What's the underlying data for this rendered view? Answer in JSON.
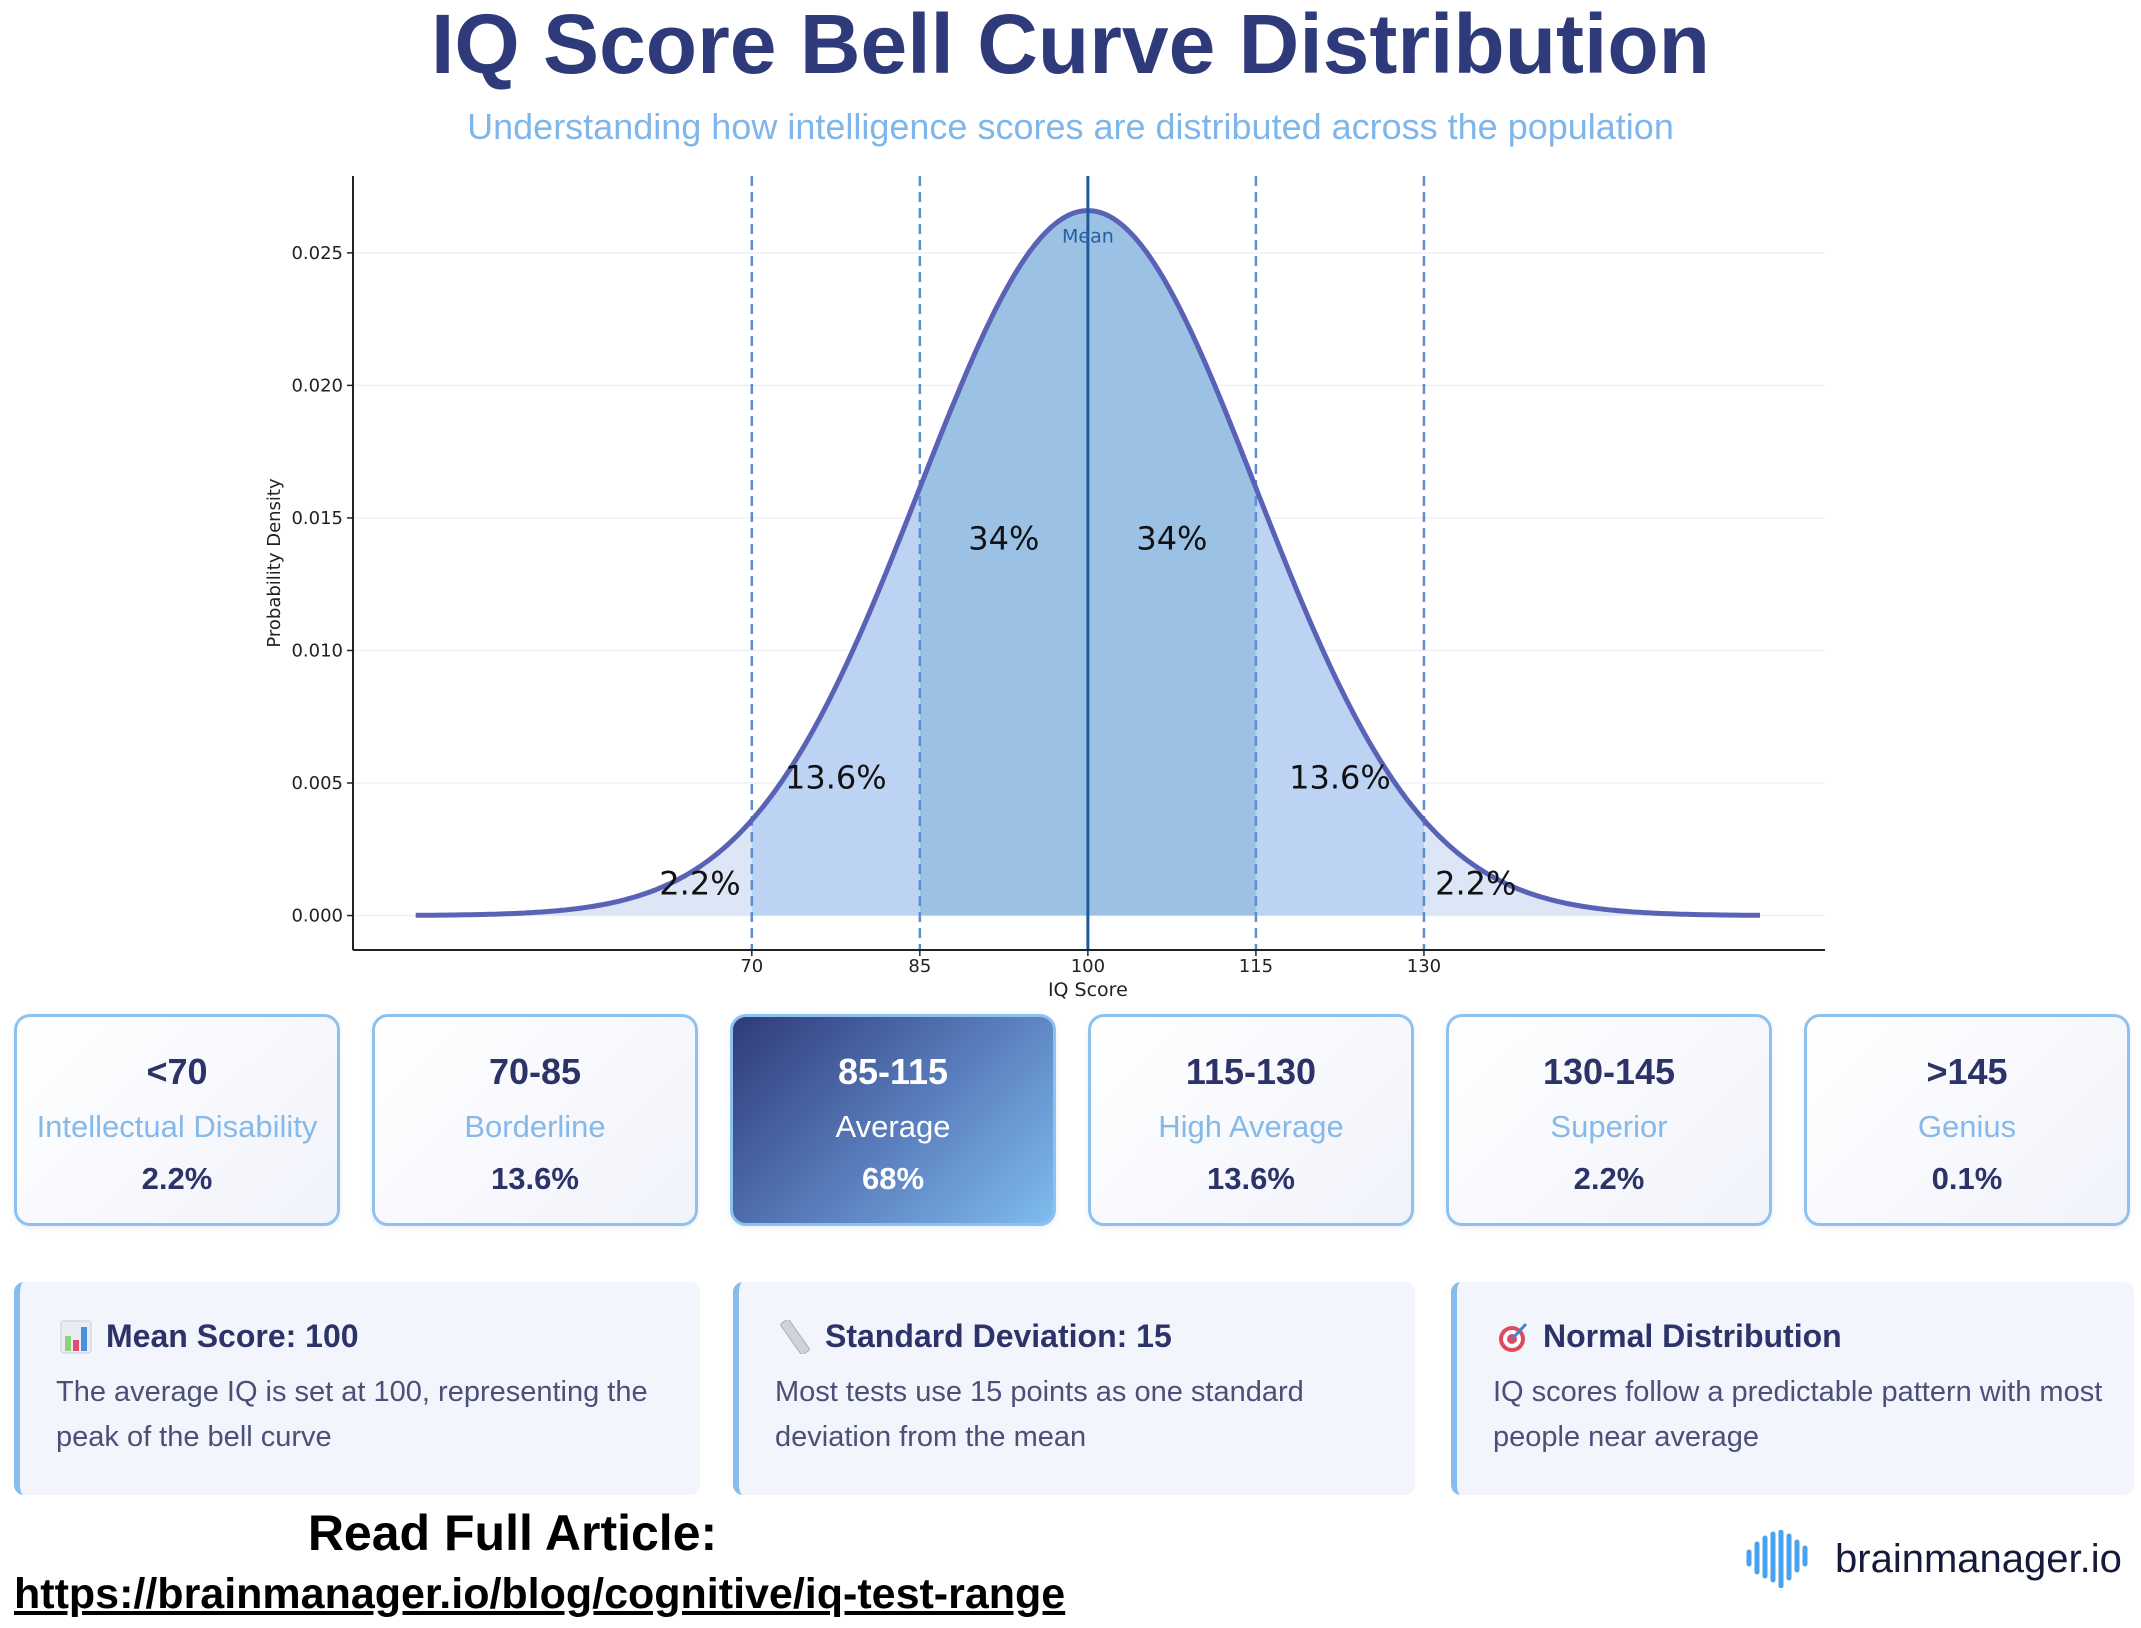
{
  "header": {
    "title": "IQ Score Bell Curve Distribution",
    "subtitle": "Understanding how intelligence scores are distributed across the population"
  },
  "chart_data": {
    "type": "area",
    "title": "",
    "xlabel": "IQ Score",
    "ylabel": "Probability Density",
    "distribution": {
      "mean": 100,
      "sd": 15
    },
    "x_range": [
      40,
      160
    ],
    "xlim": [
      34.4,
      165.8
    ],
    "ylim": [
      -0.0013,
      0.0279
    ],
    "xticks": [
      70,
      85,
      100,
      115,
      130
    ],
    "xtick_labels": [
      "70",
      "85",
      "100",
      "115",
      "130"
    ],
    "yticks": [
      0.0,
      0.005,
      0.01,
      0.015,
      0.02,
      0.025
    ],
    "ytick_labels": [
      "0.000",
      "0.005",
      "0.010",
      "0.015",
      "0.020",
      "0.025"
    ],
    "grid": true,
    "regions": [
      {
        "from": 40,
        "to": 70,
        "label": "2.2%",
        "color": "#dce6f7"
      },
      {
        "from": 70,
        "to": 85,
        "label": "13.6%",
        "color": "#bcd3f3"
      },
      {
        "from": 85,
        "to": 100,
        "label": "34%",
        "color": "#9bc1e5"
      },
      {
        "from": 100,
        "to": 115,
        "label": "34%",
        "color": "#9bc1e5"
      },
      {
        "from": 115,
        "to": 130,
        "label": "13.6%",
        "color": "#bcd3f3"
      },
      {
        "from": 130,
        "to": 160,
        "label": "2.2%",
        "color": "#dce6f7"
      }
    ],
    "dashed_lines": [
      70,
      85,
      115,
      130
    ],
    "mean_line": {
      "x": 100,
      "label": "Mean"
    },
    "colors": {
      "curve": "#5a62b6",
      "dashed": "#5b8fcf",
      "mean": "#1d5c9c"
    }
  },
  "categories": [
    {
      "range": "<70",
      "label": "Intellectual Disability",
      "pct": "2.2%",
      "highlight": false
    },
    {
      "range": "70-85",
      "label": "Borderline",
      "pct": "13.6%",
      "highlight": false
    },
    {
      "range": "85-115",
      "label": "Average",
      "pct": "68%",
      "highlight": true
    },
    {
      "range": "115-130",
      "label": "High Average",
      "pct": "13.6%",
      "highlight": false
    },
    {
      "range": "130-145",
      "label": "Superior",
      "pct": "2.2%",
      "highlight": false
    },
    {
      "range": ">145",
      "label": "Genius",
      "pct": "0.1%",
      "highlight": false
    }
  ],
  "info": [
    {
      "icon": "bar-chart-icon",
      "title": "Mean Score: 100",
      "body": "The average IQ is set at 100, representing the peak of the bell curve"
    },
    {
      "icon": "ruler-icon",
      "title": "Standard Deviation: 15",
      "body": "Most tests use 15 points as one standard deviation from the mean"
    },
    {
      "icon": "target-icon",
      "title": "Normal Distribution",
      "body": "IQ scores follow a predictable pattern with most people near average"
    }
  ],
  "footer": {
    "read_more": "Read Full Article:",
    "url": "https://brainmanager.io/blog/cognitive/iq-test-range",
    "brand": "brainmanager.io"
  }
}
